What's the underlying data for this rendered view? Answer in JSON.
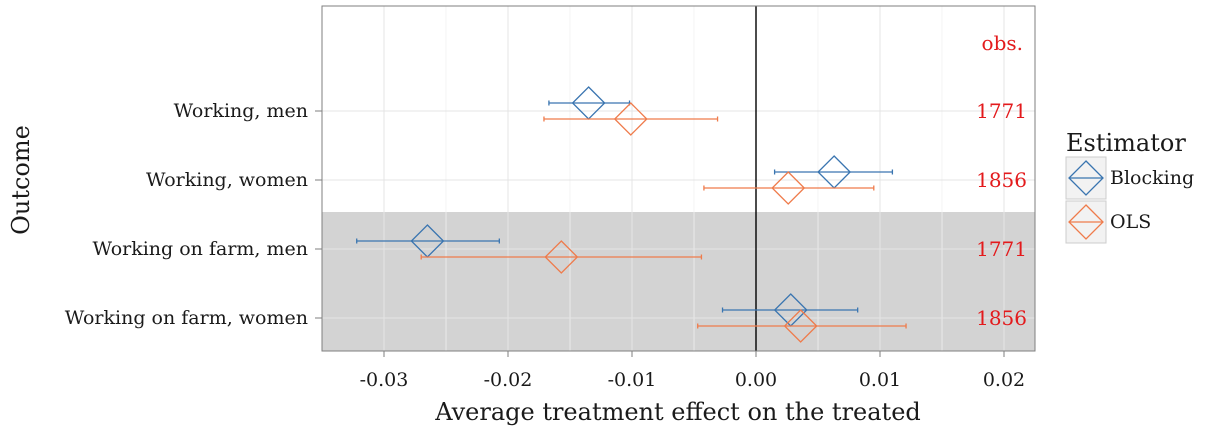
{
  "chart_data": {
    "type": "forest",
    "xlabel": "Average treatment effect on the treated",
    "ylabel": "Outcome",
    "xlim": [
      -0.035,
      0.0225
    ],
    "xticks": [
      -0.03,
      -0.02,
      -0.01,
      0.0,
      0.01,
      0.02
    ],
    "xtick_labels": [
      "-0.03",
      "-0.02",
      "-0.01",
      "0.00",
      "0.01",
      "0.02"
    ],
    "reference_line": 0.0,
    "grid": true,
    "obs_header": "obs.",
    "categories": [
      "Working, men",
      "Working, women",
      "Working on farm, men",
      "Working on farm, women"
    ],
    "shaded_categories": [
      "Working on farm, men",
      "Working on farm, women"
    ],
    "obs": [
      "1771",
      "1856",
      "1771",
      "1856"
    ],
    "legend": {
      "title": "Estimator",
      "position": "right"
    },
    "series": [
      {
        "name": "Blocking",
        "color": "#3a75b0",
        "estimates": [
          -0.0135,
          0.0063,
          -0.0265,
          0.0028
        ],
        "ci_low": [
          -0.0167,
          0.0015,
          -0.0322,
          -0.0027
        ],
        "ci_high": [
          -0.0102,
          0.011,
          -0.0207,
          0.0082
        ]
      },
      {
        "name": "OLS",
        "color": "#ef7b4b",
        "estimates": [
          -0.0101,
          0.0026,
          -0.0157,
          0.0036
        ],
        "ci_low": [
          -0.0171,
          -0.0042,
          -0.027,
          -0.0047
        ],
        "ci_high": [
          -0.0031,
          0.0095,
          -0.0044,
          0.0121
        ]
      }
    ]
  }
}
